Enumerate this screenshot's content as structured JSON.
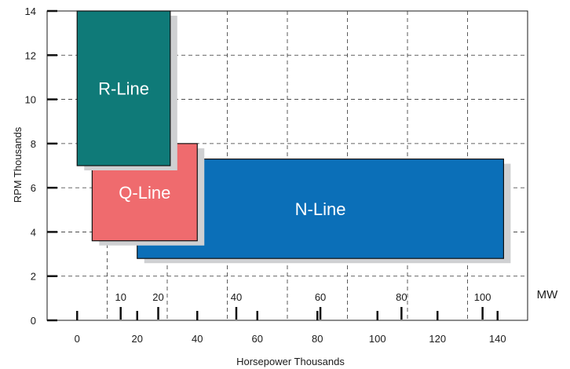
{
  "chart_data": {
    "type": "range-rectangles",
    "xlabel": "Horsepower Thousands",
    "ylabel": "RPM Thousands",
    "xlim": [
      -10,
      150
    ],
    "ylim": [
      0,
      14
    ],
    "x_ticks": [
      0,
      20,
      40,
      60,
      80,
      100,
      120,
      140
    ],
    "y_ticks": [
      0,
      2,
      4,
      6,
      8,
      10,
      12,
      14
    ],
    "grid": true,
    "grid_style": "dashed",
    "colors": {
      "N-Line": "#0b6fb8",
      "Q-Line": "#ef6b6e",
      "R-Line": "#0f7a78",
      "shadow": "#cfd0d2"
    },
    "series": [
      {
        "name": "N-Line",
        "x_range": [
          20,
          142
        ],
        "y_range": [
          2.8,
          7.3
        ]
      },
      {
        "name": "Q-Line",
        "x_range": [
          5,
          40
        ],
        "y_range": [
          3.6,
          8
        ]
      },
      {
        "name": "R-Line",
        "x_range": [
          0,
          31
        ],
        "y_range": [
          7,
          14
        ]
      }
    ],
    "secondary_axis": {
      "unit": "MW",
      "ticks": [
        {
          "label": "10",
          "hp": 14.5
        },
        {
          "label": "20",
          "hp": 27
        },
        {
          "label": "40",
          "hp": 53
        },
        {
          "label": "60",
          "hp": 81
        },
        {
          "label": "80",
          "hp": 108
        },
        {
          "label": "100",
          "hp": 135
        }
      ]
    }
  }
}
